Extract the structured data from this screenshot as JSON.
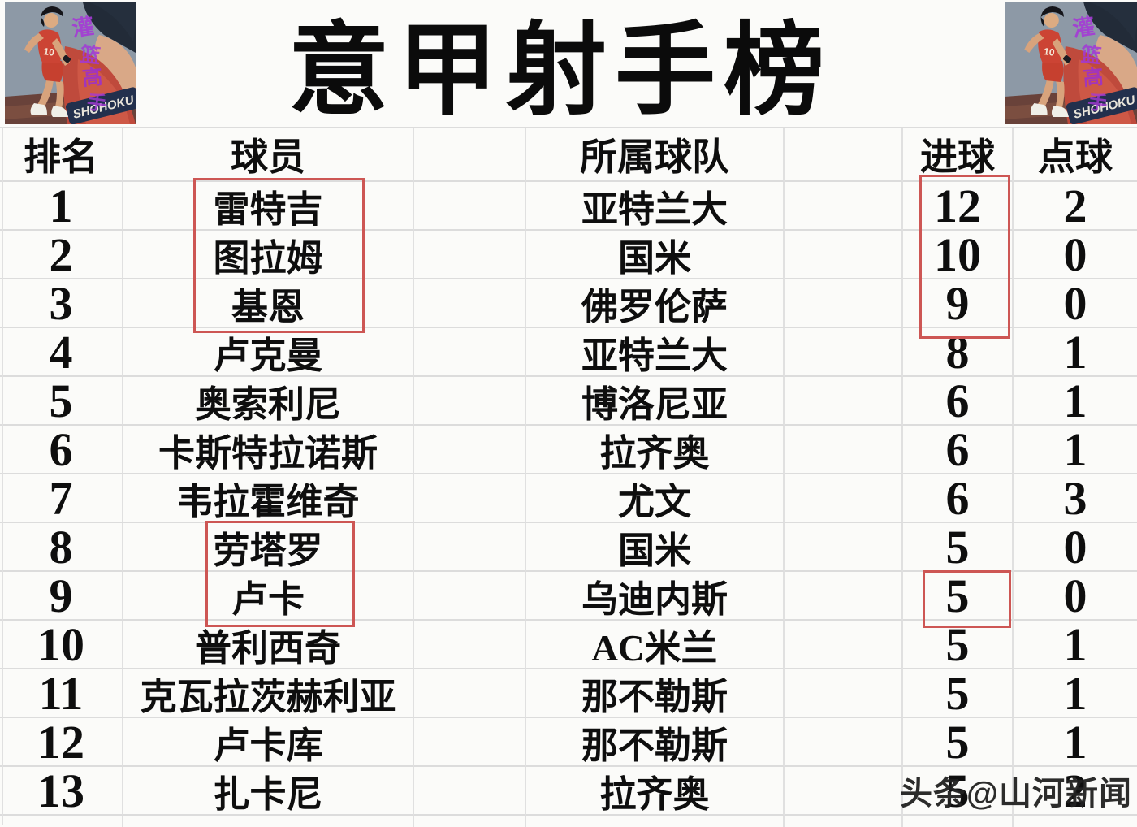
{
  "title": "意甲射手榜",
  "watermark": "头条@山河新闻",
  "decorations": {
    "corner_image": "slam-dunk-basketball-art",
    "jersey_banner_text": "SHOHOKU",
    "jersey_number": "10",
    "graffiti_chars": [
      "灌",
      "篮",
      "高",
      "手"
    ]
  },
  "colors": {
    "background": "#fbfbf9",
    "gridline": "#dcdcdc",
    "text": "#0e0e0e",
    "highlight_box": "#cd5654",
    "watermark_text": "#212121",
    "image_background": "#8d99a6",
    "image_red": "#c64a3a",
    "image_purple": "#a53ad6"
  },
  "table": {
    "columns": [
      {
        "key": "rank",
        "header": "排名"
      },
      {
        "key": "player",
        "header": "球员"
      },
      {
        "key": "spacer1",
        "header": ""
      },
      {
        "key": "team",
        "header": "所属球队"
      },
      {
        "key": "spacer2",
        "header": ""
      },
      {
        "key": "goals",
        "header": "进球"
      },
      {
        "key": "penalties",
        "header": "点球"
      }
    ],
    "rows": [
      {
        "rank": "1",
        "player": "雷特吉",
        "team": "亚特兰大",
        "goals": "12",
        "penalties": "2"
      },
      {
        "rank": "2",
        "player": "图拉姆",
        "team": "国米",
        "goals": "10",
        "penalties": "0"
      },
      {
        "rank": "3",
        "player": "基恩",
        "team": "佛罗伦萨",
        "goals": "9",
        "penalties": "0"
      },
      {
        "rank": "4",
        "player": "卢克曼",
        "team": "亚特兰大",
        "goals": "8",
        "penalties": "1"
      },
      {
        "rank": "5",
        "player": "奥索利尼",
        "team": "博洛尼亚",
        "goals": "6",
        "penalties": "1"
      },
      {
        "rank": "6",
        "player": "卡斯特拉诺斯",
        "team": "拉齐奥",
        "goals": "6",
        "penalties": "1"
      },
      {
        "rank": "7",
        "player": "韦拉霍维奇",
        "team": "尤文",
        "goals": "6",
        "penalties": "3"
      },
      {
        "rank": "8",
        "player": "劳塔罗",
        "team": "国米",
        "goals": "5",
        "penalties": "0"
      },
      {
        "rank": "9",
        "player": "卢卡",
        "team": "乌迪内斯",
        "goals": "5",
        "penalties": "0"
      },
      {
        "rank": "10",
        "player": "普利西奇",
        "team": "AC米兰",
        "goals": "5",
        "penalties": "1"
      },
      {
        "rank": "11",
        "player": "克瓦拉茨赫利亚",
        "team": "那不勒斯",
        "goals": "5",
        "penalties": "1"
      },
      {
        "rank": "12",
        "player": "卢卡库",
        "team": "那不勒斯",
        "goals": "5",
        "penalties": "1"
      },
      {
        "rank": "13",
        "player": "扎卡尼",
        "team": "拉齐奥",
        "goals": "5",
        "penalties": "2"
      }
    ]
  }
}
